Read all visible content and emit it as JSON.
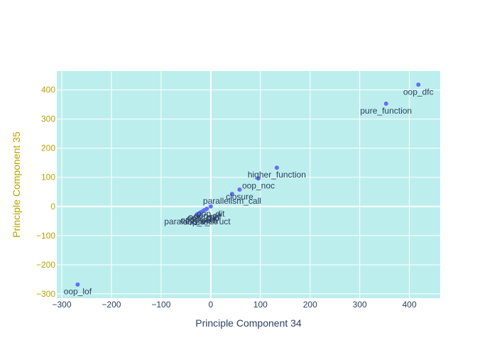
{
  "chart_data": {
    "type": "scatter",
    "title": "",
    "xlabel": "Principle Component 34",
    "ylabel": "Principle Component 35",
    "xlim": [
      -310,
      462
    ],
    "ylim": [
      -315,
      465
    ],
    "xticks": [
      -300,
      -200,
      -100,
      0,
      100,
      200,
      300,
      400
    ],
    "yticks": [
      -300,
      -200,
      -100,
      0,
      100,
      200,
      300,
      400
    ],
    "xtick_labels": [
      "−300",
      "−200",
      "−100",
      "0",
      "100",
      "200",
      "300",
      "400"
    ],
    "ytick_labels": [
      "−300",
      "−200",
      "−100",
      "0",
      "100",
      "200",
      "300",
      "400"
    ],
    "grid": true,
    "plot_background": "#bdeeee",
    "grid_color": "#ffffff",
    "marker_color": "#636efa",
    "x_axis_color": "#2a3f5f",
    "y_axis_color": "#b8a000",
    "points": [
      {
        "label": "oop_dfc",
        "x": 418,
        "y": 418
      },
      {
        "label": "pure_function",
        "x": 353,
        "y": 353
      },
      {
        "label": "higher_function",
        "x": 133,
        "y": 133
      },
      {
        "label": "oop_noc",
        "x": 96,
        "y": 96
      },
      {
        "label": "closure",
        "x": 58,
        "y": 58
      },
      {
        "label": "parallelism_call",
        "x": 43,
        "y": 43
      },
      {
        "label": "oop_dit",
        "x": 0,
        "y": 0
      },
      {
        "label": "oop_pf",
        "x": -8,
        "y": -8
      },
      {
        "label": "oop_mhf",
        "x": -12,
        "y": -12
      },
      {
        "label": "oop_cbo",
        "x": -15,
        "y": -15
      },
      {
        "label": "oop_ahf",
        "x": -20,
        "y": -20
      },
      {
        "label": "oop_lcom",
        "x": -24,
        "y": -24
      },
      {
        "label": "oop_lof",
        "x": -28,
        "y": -28
      },
      {
        "label": "parallelism_struct",
        "x": -27,
        "y": -27
      },
      {
        "label": "oop_lof",
        "x": -268,
        "y": -268
      }
    ]
  }
}
